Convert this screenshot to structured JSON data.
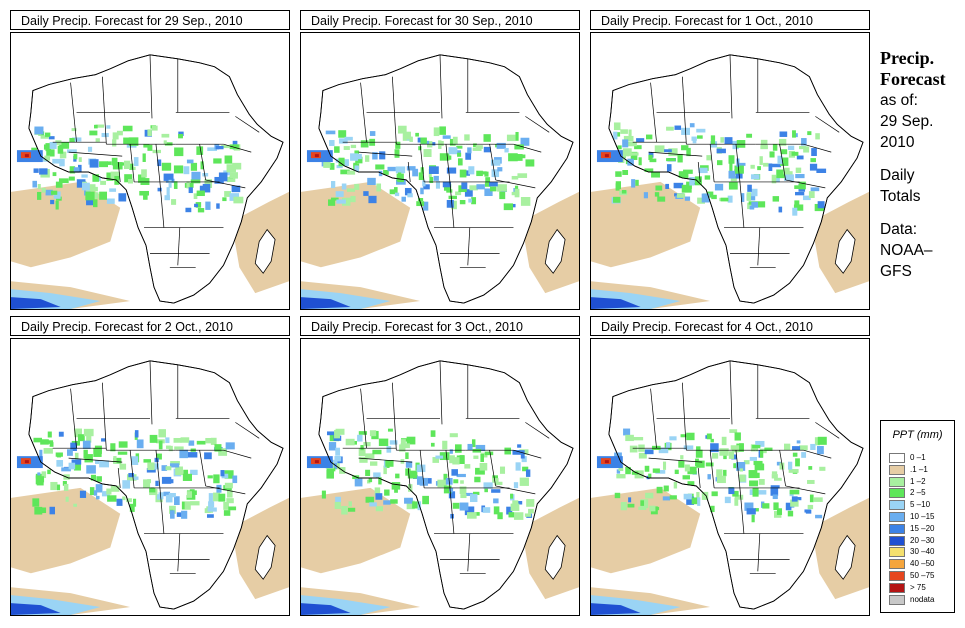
{
  "panels": [
    {
      "title": "Daily Precip. Forecast for  29 Sep., 2010"
    },
    {
      "title": "Daily Precip. Forecast for  30 Sep., 2010"
    },
    {
      "title": "Daily Precip. Forecast for  1 Oct., 2010"
    },
    {
      "title": "Daily Precip. Forecast for  2 Oct., 2010"
    },
    {
      "title": "Daily Precip. Forecast for  3 Oct., 2010"
    },
    {
      "title": "Daily Precip. Forecast for  4 Oct., 2010"
    }
  ],
  "side": {
    "heading1": "Precip.",
    "heading2": "Forecast",
    "asof1": "as of:",
    "asof2": "29 Sep.",
    "asof3": "2010",
    "daily1": "Daily",
    "daily2": "Totals",
    "data1": "Data:",
    "data2": "NOAA–",
    "data3": "GFS"
  },
  "legend": {
    "title": "PPT (mm)",
    "items": [
      {
        "label": "0 –1",
        "color": "#ffffff"
      },
      {
        "label": ".1 –1",
        "color": "#e6cda5"
      },
      {
        "label": "1 –2",
        "color": "#a8f0a0"
      },
      {
        "label": "2 –5",
        "color": "#5ee65a"
      },
      {
        "label": "5 –10",
        "color": "#9ad4f5"
      },
      {
        "label": "10 –15",
        "color": "#6aaef0"
      },
      {
        "label": "15 –20",
        "color": "#3c82e6"
      },
      {
        "label": "20 –30",
        "color": "#1f50d2"
      },
      {
        "label": "30 –40",
        "color": "#f5e06e"
      },
      {
        "label": "40 –50",
        "color": "#f5a53c"
      },
      {
        "label": "50 –75",
        "color": "#e6461e"
      },
      {
        "label": "> 75",
        "color": "#b41414"
      },
      {
        "label": "nodata",
        "color": "#c8c8c8"
      }
    ]
  }
}
